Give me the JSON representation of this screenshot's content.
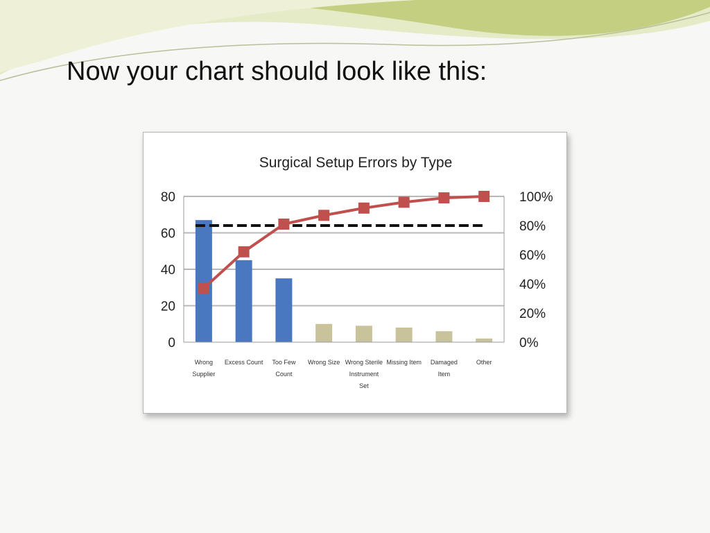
{
  "slide": {
    "title": "Now your chart should look like this:"
  },
  "colors": {
    "primary_bar": "#4a78c0",
    "secondary_bar": "#c9c39c",
    "cumulative_line": "#c0504d",
    "threshold_line": "#111111",
    "grid": "#b8b8b8",
    "slide_swoosh_light": "#dfe6b3",
    "slide_swoosh_dark": "#b9c56a"
  },
  "chart_data": {
    "type": "bar",
    "title": "Surgical Setup Errors by Type",
    "categories": [
      [
        "Wrong",
        "Supplier"
      ],
      [
        "Excess Count"
      ],
      [
        "Too Few",
        "Count"
      ],
      [
        "Wrong Size"
      ],
      [
        "Wrong Sterile",
        "Instrument",
        "Set"
      ],
      [
        "Missing Item"
      ],
      [
        "Damaged",
        "Item"
      ],
      [
        "Other"
      ]
    ],
    "series": [
      {
        "values": [
          67,
          45,
          35,
          10,
          9,
          8,
          6,
          2
        ],
        "bar_colors": [
          "primary_bar",
          "primary_bar",
          "primary_bar",
          "secondary_bar",
          "secondary_bar",
          "secondary_bar",
          "secondary_bar",
          "secondary_bar"
        ]
      },
      {
        "type": "line",
        "axis": "right",
        "values": [
          37,
          62,
          81,
          87,
          92,
          96,
          99,
          100
        ]
      },
      {
        "type": "line",
        "axis": "right",
        "style": "dashed",
        "values": [
          80,
          80,
          80,
          80,
          80,
          80,
          80,
          80
        ]
      }
    ],
    "left_axis": {
      "ylim": [
        0,
        80
      ],
      "ticks": [
        0,
        20,
        40,
        60,
        80
      ],
      "tick_labels": [
        "0",
        "20",
        "40",
        "60",
        "80"
      ]
    },
    "right_axis": {
      "ylim": [
        0,
        100
      ],
      "ticks": [
        0,
        20,
        40,
        60,
        80,
        100
      ],
      "tick_labels": [
        "0%",
        "20%",
        "40%",
        "60%",
        "80%",
        "100%"
      ]
    },
    "grid": true,
    "legend": "none"
  }
}
